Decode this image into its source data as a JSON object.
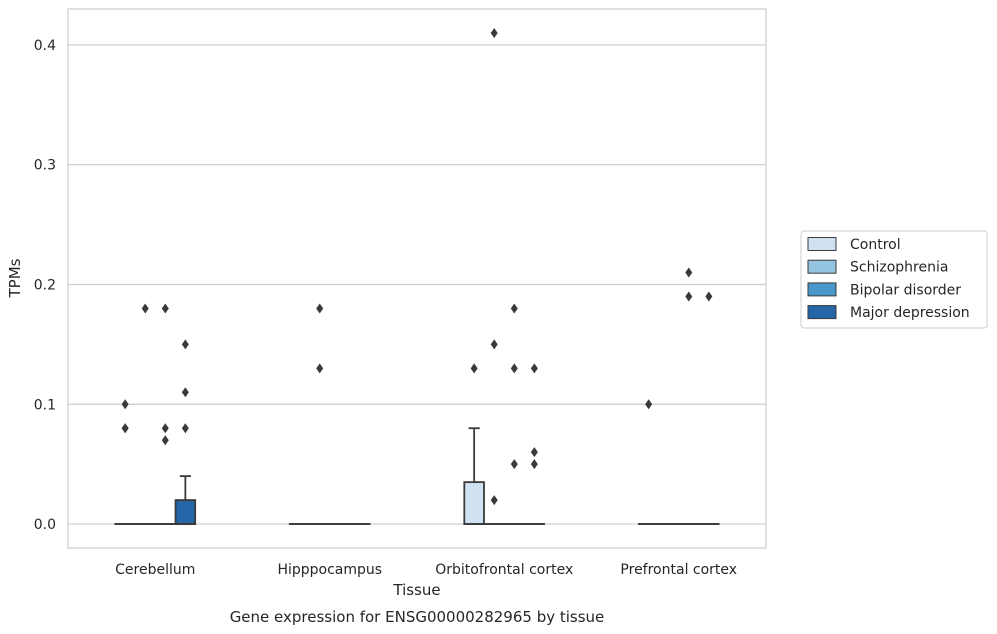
{
  "caption": "Gene expression for ENSG00000282965 by tissue",
  "chart_data": {
    "type": "box",
    "title": "",
    "xlabel": "Tissue",
    "ylabel": "TPMs",
    "ylim": [
      -0.02,
      0.43
    ],
    "yticks": [
      0.0,
      0.1,
      0.2,
      0.3,
      0.4
    ],
    "ytick_labels": [
      "0.0",
      "0.1",
      "0.2",
      "0.3",
      "0.4"
    ],
    "grid": "horizontal",
    "legend_position": "right",
    "categories": [
      "Cerebellum",
      "Hipppocampus",
      "Orbitofrontal cortex",
      "Prefrontal cortex"
    ],
    "series": [
      {
        "name": "Control",
        "color": "#d0e1f2",
        "boxes": [
          {
            "category": "Cerebellum",
            "q1": 0,
            "median": 0,
            "q3": 0,
            "whislo": 0,
            "whishi": 0,
            "fliers": [
              0.08,
              0.1,
              0.08
            ]
          },
          {
            "category": "Hipppocampus",
            "q1": 0,
            "median": 0,
            "q3": 0,
            "whislo": 0,
            "whishi": 0,
            "fliers": []
          },
          {
            "category": "Orbitofrontal cortex",
            "q1": 0,
            "median": 0,
            "q3": 0.035,
            "whislo": 0,
            "whishi": 0.08,
            "fliers": [
              0.13
            ]
          },
          {
            "category": "Prefrontal cortex",
            "q1": 0,
            "median": 0,
            "q3": 0,
            "whislo": 0,
            "whishi": 0,
            "fliers": [
              0.1
            ]
          }
        ]
      },
      {
        "name": "Schizophrenia",
        "color": "#94c4df",
        "boxes": [
          {
            "category": "Cerebellum",
            "q1": 0,
            "median": 0,
            "q3": 0,
            "whislo": 0,
            "whishi": 0,
            "fliers": [
              0.18
            ]
          },
          {
            "category": "Hipppocampus",
            "q1": 0,
            "median": 0,
            "q3": 0,
            "whislo": 0,
            "whishi": 0,
            "fliers": [
              0.18,
              0.13
            ]
          },
          {
            "category": "Orbitofrontal cortex",
            "q1": 0,
            "median": 0,
            "q3": 0,
            "whislo": 0,
            "whishi": 0,
            "fliers": [
              0.41,
              0.15,
              0.02
            ]
          },
          {
            "category": "Prefrontal cortex",
            "q1": 0,
            "median": 0,
            "q3": 0,
            "whislo": 0,
            "whishi": 0,
            "fliers": []
          }
        ]
      },
      {
        "name": "Bipolar disorder",
        "color": "#4a98c9",
        "boxes": [
          {
            "category": "Cerebellum",
            "q1": 0,
            "median": 0,
            "q3": 0,
            "whislo": 0,
            "whishi": 0,
            "fliers": [
              0.18,
              0.08,
              0.07
            ]
          },
          {
            "category": "Hipppocampus",
            "q1": 0,
            "median": 0,
            "q3": 0,
            "whislo": 0,
            "whishi": 0,
            "fliers": []
          },
          {
            "category": "Orbitofrontal cortex",
            "q1": 0,
            "median": 0,
            "q3": 0,
            "whislo": 0,
            "whishi": 0,
            "fliers": [
              0.18,
              0.13,
              0.05
            ]
          },
          {
            "category": "Prefrontal cortex",
            "q1": 0,
            "median": 0,
            "q3": 0,
            "whislo": 0,
            "whishi": 0,
            "fliers": [
              0.21,
              0.19
            ]
          }
        ]
      },
      {
        "name": "Major depression",
        "color": "#2566a8",
        "boxes": [
          {
            "category": "Cerebellum",
            "q1": 0,
            "median": 0,
            "q3": 0.02,
            "whislo": 0,
            "whishi": 0.04,
            "fliers": [
              0.15,
              0.11,
              0.08
            ]
          },
          {
            "category": "Hipppocampus",
            "q1": 0,
            "median": 0,
            "q3": 0,
            "whislo": 0,
            "whishi": 0,
            "fliers": []
          },
          {
            "category": "Orbitofrontal cortex",
            "q1": 0,
            "median": 0,
            "q3": 0,
            "whislo": 0,
            "whishi": 0,
            "fliers": [
              0.13,
              0.06,
              0.05
            ]
          },
          {
            "category": "Prefrontal cortex",
            "q1": 0,
            "median": 0,
            "q3": 0,
            "whislo": 0,
            "whishi": 0,
            "fliers": [
              0.19
            ]
          }
        ]
      }
    ]
  }
}
